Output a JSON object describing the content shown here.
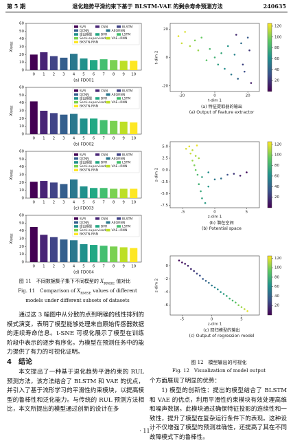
{
  "header": {
    "issue": "第 5 期",
    "title": "退化趋势平滑约束下基于 BLSTM-VAE 的剩余寿命预测方法",
    "code": "240635"
  },
  "chart_data": [
    {
      "type": "bar",
      "subtitle": "(a) FD001",
      "ylabel": "X",
      "ylabel_sub": "RMSE",
      "categories": [
        "0",
        "1",
        "2",
        "3",
        "4",
        "5",
        "6",
        "7",
        "8",
        "9",
        "10"
      ],
      "values": [
        20,
        23,
        18,
        16,
        21,
        15,
        13,
        14,
        13,
        12,
        12
      ],
      "colors": [
        "#440154",
        "#482475",
        "#414487",
        "#355f8d",
        "#2a788e",
        "#21918c",
        "#22a884",
        "#44bf70",
        "#7ad151",
        "#bddf26",
        "#fde725"
      ],
      "legend": [
        "SVR",
        "CNN",
        "BLSTM",
        "DCNN",
        "AEQRNN",
        "提出模型",
        "BVR",
        "LSTM",
        "Semi-supervised",
        "VAE+RNN",
        "BKSTN-RNN"
      ],
      "ylim": [
        0,
        60
      ],
      "yticks": [
        0,
        10,
        20,
        30,
        40,
        50,
        60
      ]
    },
    {
      "type": "bar",
      "subtitle": "(b) FD002",
      "ylabel": "X",
      "ylabel_sub": "RMSE",
      "categories": [
        "0",
        "1",
        "2",
        "3",
        "4",
        "5",
        "6",
        "7",
        "8",
        "9",
        "10"
      ],
      "values": [
        42,
        30,
        27,
        25,
        26,
        20,
        20,
        18,
        17,
        16,
        15
      ],
      "colors": [
        "#440154",
        "#482475",
        "#414487",
        "#355f8d",
        "#2a788e",
        "#21918c",
        "#22a884",
        "#44bf70",
        "#7ad151",
        "#bddf26",
        "#fde725"
      ],
      "legend": [
        "SVR",
        "CNN",
        "BLSTM",
        "DCNN",
        "AEQRNN",
        "提出模型",
        "BVR",
        "LSTM",
        "Semi-supervised",
        "VAE+RNN",
        "BKSTN-RNN"
      ],
      "ylim": [
        0,
        60
      ],
      "yticks": [
        0,
        10,
        20,
        30,
        40,
        50,
        60
      ]
    },
    {
      "type": "bar",
      "subtitle": "(c) FD003",
      "ylabel": "X",
      "ylabel_sub": "RMSE",
      "categories": [
        "0",
        "1",
        "2",
        "3",
        "4",
        "5",
        "6",
        "7",
        "8",
        "9",
        "10"
      ],
      "values": [
        21,
        22,
        20,
        18,
        24,
        15,
        13,
        13,
        12,
        12,
        12
      ],
      "colors": [
        "#440154",
        "#482475",
        "#414487",
        "#355f8d",
        "#2a788e",
        "#21918c",
        "#22a884",
        "#44bf70",
        "#7ad151",
        "#bddf26",
        "#fde725"
      ],
      "legend": [
        "SVR",
        "CNN",
        "BLSTM",
        "DCNN",
        "AEQRNN",
        "提出模型",
        "BVR",
        "LSTM",
        "Semi-supervised",
        "VAE+RNN",
        "BKSTN-RNN"
      ],
      "ylim": [
        0,
        60
      ],
      "yticks": [
        0,
        10,
        20,
        30,
        40,
        50,
        60
      ]
    },
    {
      "type": "bar",
      "subtitle": "(d) FD004",
      "ylabel": "X",
      "ylabel_sub": "RMSE",
      "categories": [
        "0",
        "1",
        "2",
        "3",
        "4",
        "5",
        "6",
        "7",
        "8",
        "9",
        "10"
      ],
      "values": [
        45,
        35,
        32,
        29,
        28,
        23,
        22,
        21,
        20,
        19,
        18
      ],
      "colors": [
        "#440154",
        "#482475",
        "#414487",
        "#355f8d",
        "#2a788e",
        "#21918c",
        "#22a884",
        "#44bf70",
        "#7ad151",
        "#bddf26",
        "#fde725"
      ],
      "legend": [
        "SVR",
        "CNN",
        "BLSTM",
        "DCNN",
        "AEQRNN",
        "提出模型",
        "BVR",
        "LSTM",
        "Semi-supervised",
        "VAE+RNN",
        "BKSTN-RNN"
      ],
      "ylim": [
        0,
        60
      ],
      "yticks": [
        0,
        10,
        20,
        30,
        40,
        50,
        60
      ]
    },
    {
      "type": "scatter",
      "xlabel": "t-dim 1",
      "ylabel": "t-dim 2",
      "caption_cn": "(a) 特征提取器的输出",
      "caption_en": "(a) Output of feature extractor",
      "x": [
        -22,
        -20,
        -18,
        -15,
        -12,
        -10,
        -8,
        -5,
        -3,
        0,
        2,
        4,
        6,
        8,
        10,
        12,
        14,
        16,
        18,
        20,
        22,
        21,
        17,
        13
      ],
      "y": [
        15,
        10,
        18,
        8,
        12,
        5,
        14,
        -2,
        6,
        0,
        -5,
        3,
        -8,
        8,
        -12,
        2,
        -15,
        10,
        -10,
        14,
        -18,
        5,
        -5,
        16
      ],
      "c": [
        120,
        115,
        118,
        110,
        100,
        105,
        95,
        90,
        85,
        80,
        70,
        75,
        60,
        65,
        50,
        55,
        40,
        45,
        30,
        35,
        10,
        20,
        25,
        15
      ],
      "xlim": [
        -27,
        27
      ],
      "ylim": [
        -24,
        24
      ],
      "xticks": [
        -20,
        0,
        20
      ],
      "yticks": [
        -20,
        0,
        20
      ],
      "clim": [
        0,
        125
      ],
      "cticks": [
        20,
        40,
        60,
        80,
        100,
        120
      ],
      "colormap": [
        "#440154",
        "#3b528b",
        "#21918c",
        "#5ec962",
        "#fde725"
      ]
    },
    {
      "type": "scatter",
      "xlabel": "z-dim 1",
      "ylabel": "z-dim 2",
      "caption_cn": "(b) 潜在空间",
      "caption_en": "(b) Potential space",
      "x": [
        -4.5,
        -4,
        -3.8,
        -3.5,
        -3,
        -2.8,
        -2.5,
        -3.2,
        -3,
        -2.7,
        -2,
        -1,
        0,
        1,
        2,
        3,
        4,
        5,
        -2.5,
        -2.2,
        -2,
        -1.5,
        -3.5,
        -1
      ],
      "y": [
        4.5,
        5,
        3.5,
        4.2,
        3,
        5.2,
        2.5,
        1,
        0,
        -1,
        -1.5,
        -0.5,
        -2,
        -1.8,
        -1,
        -0.8,
        -1.2,
        -0.5,
        -3,
        -4.5,
        -6,
        -7,
        2,
        -3.5
      ],
      "c": [
        118,
        120,
        115,
        112,
        110,
        122,
        108,
        100,
        95,
        85,
        70,
        60,
        50,
        45,
        30,
        20,
        10,
        5,
        80,
        75,
        72,
        68,
        105,
        65
      ],
      "xlim": [
        -7,
        7
      ],
      "ylim": [
        -8,
        6
      ],
      "xticks": [
        -5,
        0,
        5
      ],
      "yticks": [
        {
          "value": -7.5,
          "label": "-7.5"
        },
        {
          "value": -5,
          "label": "-5.0"
        },
        {
          "value": -2.5,
          "label": "-2.5"
        },
        {
          "value": 0,
          "label": "0.0"
        },
        {
          "value": 2.5,
          "label": "2.5"
        },
        {
          "value": 5,
          "label": "5.0"
        }
      ],
      "clim": [
        0,
        125
      ],
      "cticks": [
        20,
        40,
        60,
        80,
        100,
        120
      ],
      "colormap": [
        "#440154",
        "#3b528b",
        "#21918c",
        "#5ec962",
        "#fde725"
      ]
    },
    {
      "type": "scatter",
      "xlabel": "z-dim 1",
      "ylabel": "z-dim 2",
      "caption_cn": "(c) 回归模型的输出",
      "caption_en": "(c) Output of regression model",
      "x": [
        -5.5,
        -5,
        -4.5,
        -4,
        -3.5,
        -3,
        -2.5,
        -2,
        -1.5,
        -1,
        -0.5,
        0,
        0.5,
        1,
        1.5,
        2,
        2.5,
        3,
        3.5,
        4,
        4.5,
        5,
        5.5,
        6
      ],
      "y": [
        0.8,
        0.5,
        0.3,
        0,
        -0.5,
        -0.8,
        -1.2,
        -1.5,
        -2,
        -2.3,
        -2.6,
        -3,
        -3.3,
        -3.6,
        -4,
        -4.3,
        -4.6,
        -5,
        -5.3,
        -5.6,
        -6,
        -6.3,
        -6.6,
        -6.9
      ],
      "c": [
        2,
        5,
        8,
        12,
        15,
        20,
        25,
        30,
        35,
        40,
        45,
        50,
        55,
        60,
        65,
        70,
        75,
        80,
        85,
        90,
        100,
        105,
        112,
        120
      ],
      "xlim": [
        -7,
        8
      ],
      "ylim": [
        -7.5,
        1.5
      ],
      "xticks": [
        -5,
        0,
        5
      ],
      "yticks": [
        -6,
        -4,
        -2,
        0
      ],
      "clim": [
        0,
        125
      ],
      "cticks": [
        20,
        40,
        60,
        80,
        100,
        120
      ],
      "colormap": [
        "#440154",
        "#3b528b",
        "#21918c",
        "#5ec962",
        "#fde725"
      ]
    }
  ],
  "fig11": {
    "cn": [
      "图 11　不同数据集子集下不同模型的 ",
      "X",
      "RMSE",
      " 值对比"
    ],
    "en": [
      "Fig. 11　Comparison of ",
      "X",
      "RMSE",
      " values of different models under different subsets of datasets"
    ]
  },
  "fig12": {
    "cn": "图 12　模型输出的可视化",
    "en": "Fig. 12　Visualization of model output"
  },
  "body": {
    "para1": "通过这 3 幅图中从分散的点到明确的线性排列的模式演变，表明了模型能够处理来自原始传感器数据的连续寿命信息。t-SNE 可视化展示了模型在训练阶段中表示的逐步有序化，为模型在预测任务中的能力提供了有力的可视化证明。",
    "heading": "4　结论",
    "para2": "本文提出了一种基于退化趋势平滑约束的 RUL 预测方法，该方法结合了 BLSTM 和 VAE 的优点，并引入了基于流形学习的平滑性约束模块，以提高模型的鲁棒性和泛化能力。与传统的 RUL 预测方法相比，本文所提出的模型通过创新的设计在多",
    "para3": "个方面展现了明显的优势：",
    "para4": "1) 模型的创新性：提出的模型结合了 BLSTM 和 VAE 的优点，利用平滑性约束模块有效处理高维和噪声数据。此模块通过确保特征投影的连续性和一致性，提升了模型在复杂运行条件下的表现。这种设计不仅增强了模型的预测准确性，还提高了其在不同故障模式下的鲁棒性。"
  },
  "page_number": "· 11 ·"
}
